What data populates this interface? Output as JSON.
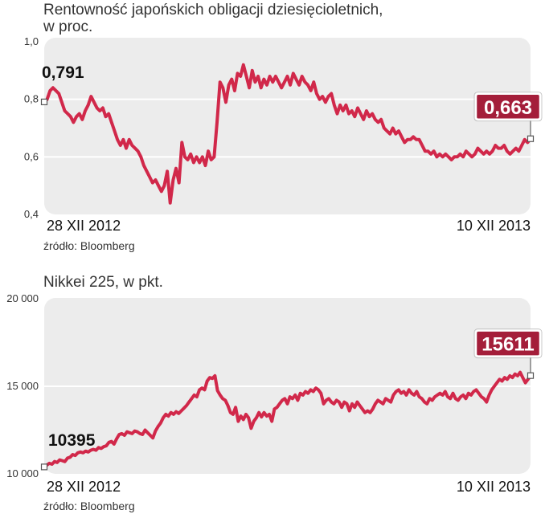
{
  "chart_data": [
    {
      "type": "line",
      "title": "Rentowność japońskich obligacji dziesięcioletnich,",
      "subtitle": "w proc.",
      "source": "źródło: Bloomberg",
      "x_start_label": "28 XII 2012",
      "x_end_label": "10 XII 2013",
      "ylim": [
        0.4,
        1.0
      ],
      "yticks": [
        "1,0",
        "0,8",
        "0,6",
        "0,4"
      ],
      "grid": true,
      "start_label": "0,791",
      "end_label": "0,663",
      "accent_color": "#d1284a",
      "badge_color": "#a41e3a",
      "values": [
        0.791,
        0.8,
        0.83,
        0.84,
        0.83,
        0.82,
        0.79,
        0.76,
        0.75,
        0.74,
        0.72,
        0.74,
        0.75,
        0.73,
        0.76,
        0.78,
        0.81,
        0.79,
        0.77,
        0.76,
        0.77,
        0.74,
        0.75,
        0.72,
        0.69,
        0.66,
        0.64,
        0.66,
        0.63,
        0.66,
        0.64,
        0.63,
        0.62,
        0.6,
        0.57,
        0.55,
        0.53,
        0.51,
        0.52,
        0.5,
        0.48,
        0.5,
        0.55,
        0.44,
        0.52,
        0.56,
        0.51,
        0.65,
        0.6,
        0.59,
        0.61,
        0.58,
        0.6,
        0.58,
        0.6,
        0.57,
        0.62,
        0.59,
        0.6,
        0.72,
        0.86,
        0.84,
        0.79,
        0.85,
        0.87,
        0.83,
        0.89,
        0.88,
        0.92,
        0.88,
        0.84,
        0.9,
        0.86,
        0.88,
        0.84,
        0.87,
        0.85,
        0.88,
        0.86,
        0.88,
        0.86,
        0.84,
        0.86,
        0.88,
        0.85,
        0.89,
        0.87,
        0.85,
        0.88,
        0.86,
        0.85,
        0.83,
        0.86,
        0.82,
        0.8,
        0.81,
        0.79,
        0.81,
        0.82,
        0.78,
        0.75,
        0.78,
        0.76,
        0.78,
        0.75,
        0.76,
        0.74,
        0.77,
        0.75,
        0.73,
        0.76,
        0.74,
        0.75,
        0.73,
        0.72,
        0.73,
        0.7,
        0.69,
        0.68,
        0.7,
        0.68,
        0.69,
        0.67,
        0.65,
        0.66,
        0.66,
        0.67,
        0.66,
        0.66,
        0.64,
        0.62,
        0.62,
        0.61,
        0.62,
        0.6,
        0.61,
        0.6,
        0.61,
        0.6,
        0.59,
        0.6,
        0.6,
        0.61,
        0.6,
        0.62,
        0.61,
        0.6,
        0.61,
        0.63,
        0.62,
        0.61,
        0.62,
        0.61,
        0.62,
        0.64,
        0.63,
        0.63,
        0.64,
        0.62,
        0.61,
        0.62,
        0.63,
        0.62,
        0.64,
        0.66,
        0.65,
        0.663
      ]
    },
    {
      "type": "line",
      "title": "Nikkei 225, w pkt.",
      "source": "źródło: Bloomberg",
      "x_start_label": "28 XII 2012",
      "x_end_label": "10 XII 2013",
      "ylim": [
        10000,
        20000
      ],
      "yticks": [
        "20 000",
        "15 000",
        "10 000"
      ],
      "grid": true,
      "start_label": "10395",
      "end_label": "15611",
      "accent_color": "#d1284a",
      "badge_color": "#a41e3a",
      "values": [
        10395,
        10500,
        10600,
        10550,
        10700,
        10650,
        10800,
        10750,
        10700,
        10900,
        10950,
        11100,
        11050,
        11200,
        11250,
        11200,
        11300,
        11250,
        11350,
        11400,
        11350,
        11500,
        11450,
        11550,
        11600,
        11800,
        11850,
        11700,
        12000,
        12250,
        12300,
        12200,
        12400,
        12350,
        12300,
        12450,
        12400,
        12300,
        12250,
        12500,
        12350,
        12200,
        12050,
        12450,
        12700,
        12900,
        13200,
        13400,
        13300,
        13500,
        13400,
        13550,
        13450,
        13600,
        13750,
        13900,
        14100,
        14300,
        14500,
        14400,
        14800,
        14900,
        14800,
        15300,
        15500,
        15450,
        15600,
        14750,
        14500,
        14300,
        14200,
        13900,
        13500,
        13400,
        13800,
        13000,
        13300,
        13100,
        13400,
        13200,
        12600,
        13000,
        13200,
        13500,
        13250,
        13500,
        13300,
        13400,
        13000,
        13700,
        13800,
        14000,
        14200,
        14300,
        14000,
        14400,
        14300,
        14500,
        14200,
        14600,
        14500,
        14700,
        14600,
        14800,
        14700,
        14900,
        14800,
        14600,
        14000,
        14200,
        14300,
        14100,
        14000,
        14200,
        14100,
        13800,
        14100,
        14000,
        13600,
        14000,
        13800,
        14100,
        13900,
        13700,
        13500,
        13600,
        13500,
        13700,
        14000,
        14200,
        14100,
        14000,
        14300,
        14200,
        14100,
        14500,
        14700,
        14800,
        14600,
        14700,
        14500,
        14800,
        14600,
        14500,
        14700,
        14400,
        14300,
        14100,
        14000,
        14300,
        14200,
        14400,
        14500,
        14600,
        14500,
        14700,
        14400,
        14300,
        14600,
        14300,
        14200,
        14400,
        14500,
        14300,
        14600,
        14500,
        14700,
        14800,
        14600,
        14400,
        14300,
        14100,
        14500,
        14800,
        15000,
        15200,
        15400,
        15300,
        15500,
        15400,
        15600,
        15500,
        15700,
        15600,
        15800,
        15500,
        15200,
        15400,
        15611
      ]
    }
  ]
}
